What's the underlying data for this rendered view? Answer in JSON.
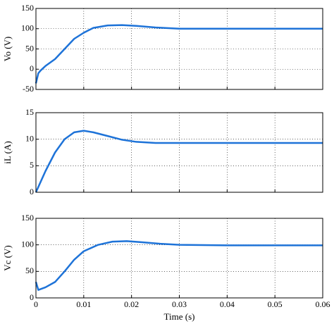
{
  "chart_data": [
    {
      "type": "line",
      "ylabel": "Vo (V)",
      "color": "#1e73d8",
      "grid": true,
      "x": [
        0,
        0.0005,
        0.001,
        0.002,
        0.004,
        0.006,
        0.008,
        0.01,
        0.012,
        0.015,
        0.018,
        0.021,
        0.025,
        0.03,
        0.04,
        0.05,
        0.06
      ],
      "values": [
        -35,
        -10,
        -3,
        8,
        25,
        50,
        75,
        90,
        102,
        108,
        109,
        107,
        103,
        100,
        100,
        100,
        100
      ],
      "xlim": [
        0,
        0.06
      ],
      "ylim": [
        -50,
        150
      ],
      "yticks": [
        -50,
        0,
        50,
        100,
        150
      ]
    },
    {
      "type": "line",
      "ylabel": "iL (A)",
      "color": "#1e73d8",
      "grid": true,
      "x": [
        0,
        0.002,
        0.004,
        0.006,
        0.008,
        0.01,
        0.012,
        0.015,
        0.018,
        0.021,
        0.025,
        0.03,
        0.04,
        0.05,
        0.06
      ],
      "values": [
        0,
        4,
        7.5,
        10,
        11.3,
        11.6,
        11.3,
        10.6,
        9.9,
        9.5,
        9.3,
        9.3,
        9.3,
        9.3,
        9.3
      ],
      "xlim": [
        0,
        0.06
      ],
      "ylim": [
        0,
        15
      ],
      "yticks": [
        0,
        5,
        10,
        15
      ]
    },
    {
      "type": "line",
      "ylabel": "Vc (V)",
      "xlabel": "Time (s)",
      "color": "#1e73d8",
      "grid": true,
      "x": [
        0,
        0.0005,
        0.002,
        0.004,
        0.006,
        0.008,
        0.01,
        0.013,
        0.016,
        0.019,
        0.022,
        0.026,
        0.03,
        0.04,
        0.05,
        0.06
      ],
      "values": [
        30,
        15,
        20,
        30,
        50,
        72,
        88,
        100,
        106,
        107,
        105,
        102,
        100,
        99,
        99,
        99
      ],
      "xlim": [
        0,
        0.06
      ],
      "xticks": [
        0,
        0.01,
        0.02,
        0.03,
        0.04,
        0.05,
        0.06
      ],
      "ylim": [
        0,
        150
      ],
      "yticks": [
        0,
        50,
        100,
        150
      ]
    }
  ]
}
